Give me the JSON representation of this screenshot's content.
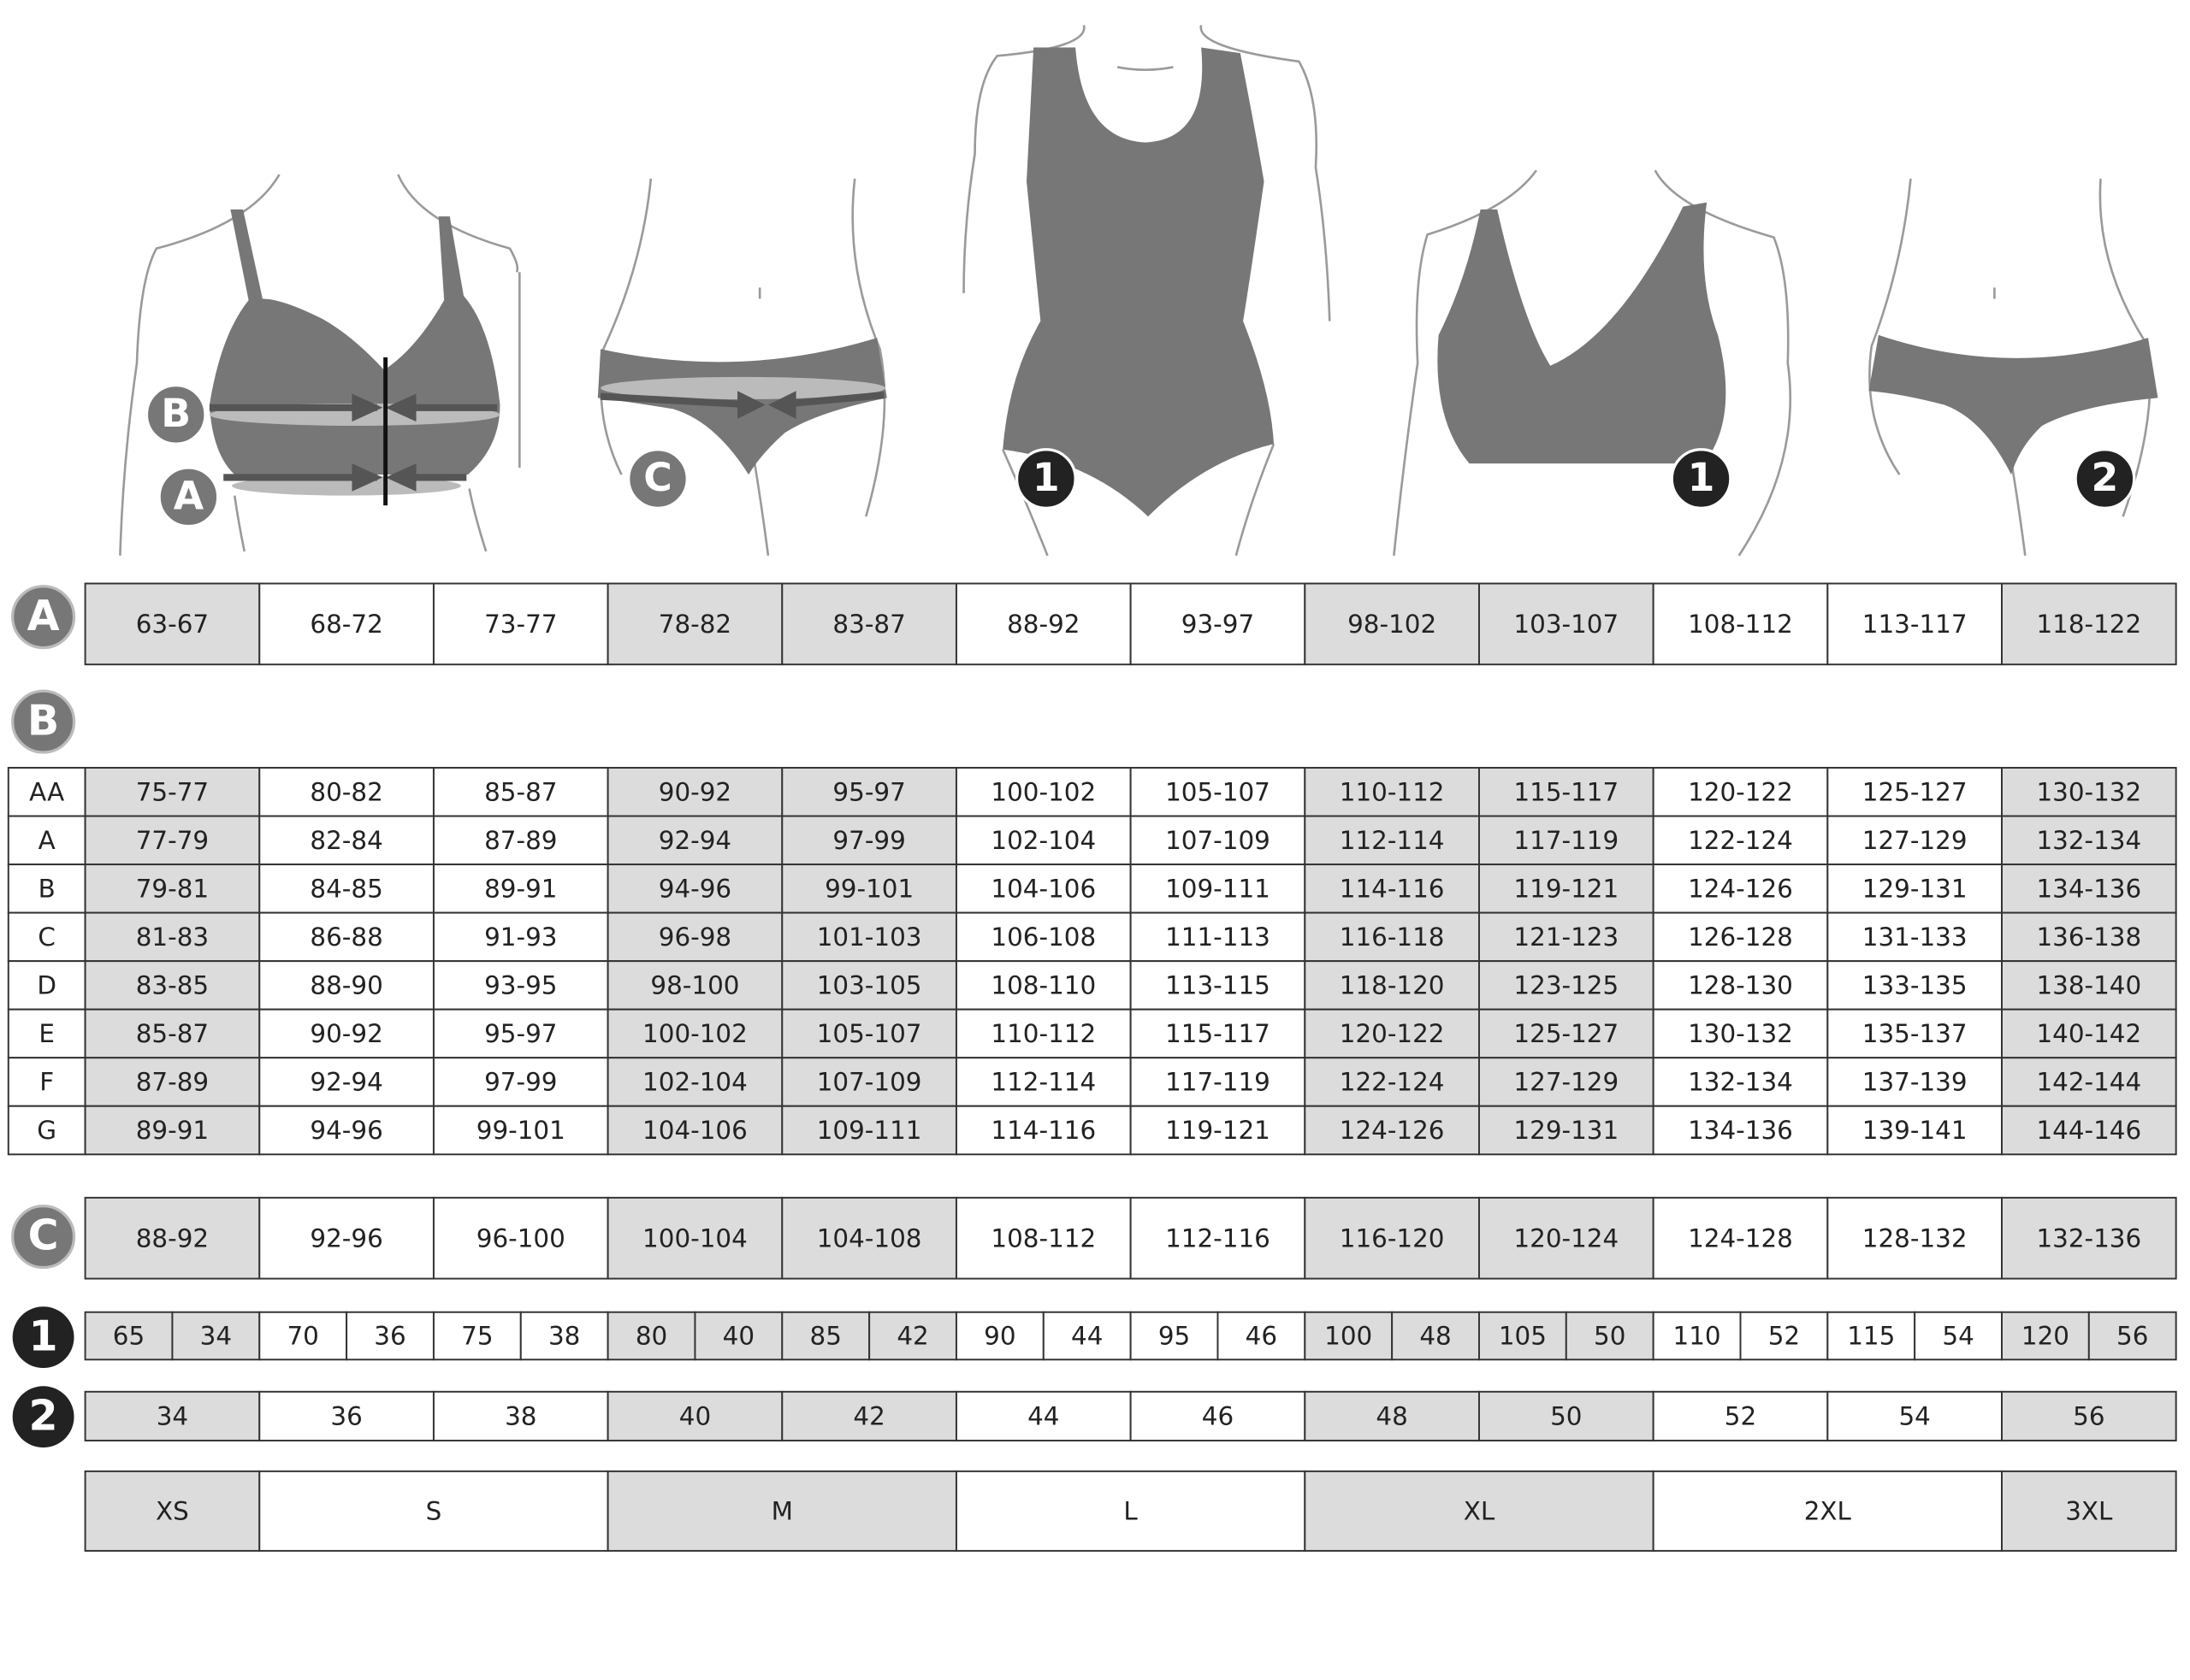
{
  "figures": [
    {
      "badges": [
        "B",
        "A"
      ]
    },
    {
      "badges": [
        "C"
      ]
    },
    {
      "badges": [
        "1"
      ]
    },
    {
      "badges": [
        "1"
      ]
    },
    {
      "badges": [
        "2"
      ]
    }
  ],
  "table_a": {
    "label": "A",
    "cells": [
      "63-67",
      "68-72",
      "73-77",
      "78-82",
      "83-87",
      "88-92",
      "93-97",
      "98-102",
      "103-107",
      "108-112",
      "113-117",
      "118-122"
    ]
  },
  "table_b": {
    "label": "B",
    "rows": [
      {
        "cup": "AA",
        "cells": [
          "75-77",
          "80-82",
          "85-87",
          "90-92",
          "95-97",
          "100-102",
          "105-107",
          "110-112",
          "115-117",
          "120-122",
          "125-127",
          "130-132"
        ]
      },
      {
        "cup": "A",
        "cells": [
          "77-79",
          "82-84",
          "87-89",
          "92-94",
          "97-99",
          "102-104",
          "107-109",
          "112-114",
          "117-119",
          "122-124",
          "127-129",
          "132-134"
        ]
      },
      {
        "cup": "B",
        "cells": [
          "79-81",
          "84-85",
          "89-91",
          "94-96",
          "99-101",
          "104-106",
          "109-111",
          "114-116",
          "119-121",
          "124-126",
          "129-131",
          "134-136"
        ]
      },
      {
        "cup": "C",
        "cells": [
          "81-83",
          "86-88",
          "91-93",
          "96-98",
          "101-103",
          "106-108",
          "111-113",
          "116-118",
          "121-123",
          "126-128",
          "131-133",
          "136-138"
        ]
      },
      {
        "cup": "D",
        "cells": [
          "83-85",
          "88-90",
          "93-95",
          "98-100",
          "103-105",
          "108-110",
          "113-115",
          "118-120",
          "123-125",
          "128-130",
          "133-135",
          "138-140"
        ]
      },
      {
        "cup": "E",
        "cells": [
          "85-87",
          "90-92",
          "95-97",
          "100-102",
          "105-107",
          "110-112",
          "115-117",
          "120-122",
          "125-127",
          "130-132",
          "135-137",
          "140-142"
        ]
      },
      {
        "cup": "F",
        "cells": [
          "87-89",
          "92-94",
          "97-99",
          "102-104",
          "107-109",
          "112-114",
          "117-119",
          "122-124",
          "127-129",
          "132-134",
          "137-139",
          "142-144"
        ]
      },
      {
        "cup": "G",
        "cells": [
          "89-91",
          "94-96",
          "99-101",
          "104-106",
          "109-111",
          "114-116",
          "119-121",
          "124-126",
          "129-131",
          "134-136",
          "139-141",
          "144-146"
        ]
      }
    ]
  },
  "table_c": {
    "label": "C",
    "cells": [
      "88-92",
      "92-96",
      "96-100",
      "100-104",
      "104-108",
      "108-112",
      "112-116",
      "116-120",
      "120-124",
      "124-128",
      "128-132",
      "132-136"
    ]
  },
  "table_1": {
    "label": "1",
    "cells": [
      "65",
      "34",
      "70",
      "36",
      "75",
      "38",
      "80",
      "40",
      "85",
      "42",
      "90",
      "44",
      "95",
      "46",
      "100",
      "48",
      "105",
      "50",
      "110",
      "52",
      "115",
      "54",
      "120",
      "56"
    ]
  },
  "table_2": {
    "label": "2",
    "cells": [
      "34",
      "36",
      "38",
      "40",
      "42",
      "44",
      "46",
      "48",
      "50",
      "52",
      "54",
      "56"
    ]
  },
  "sizes": [
    "XS",
    "S",
    "M",
    "L",
    "XL",
    "2XL",
    "3XL"
  ]
}
